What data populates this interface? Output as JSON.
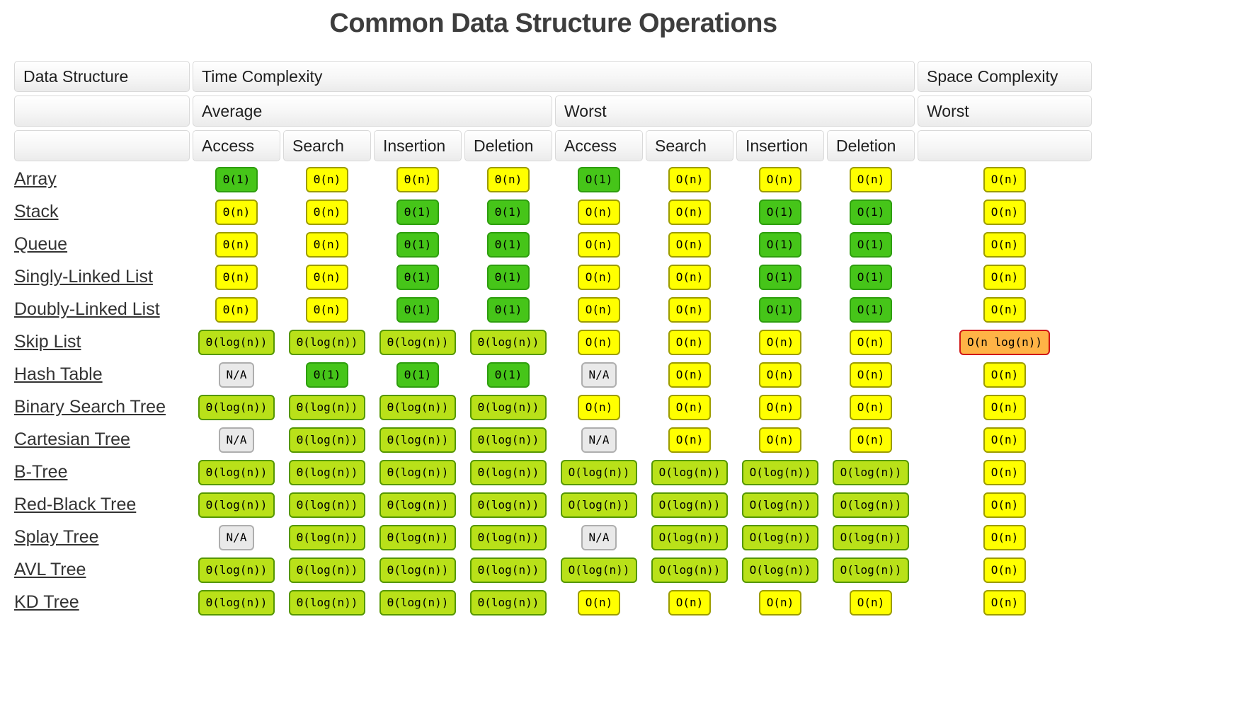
{
  "title": "Common Data Structure Operations",
  "header": {
    "data_structure": "Data Structure",
    "time_complexity": "Time Complexity",
    "space_complexity": "Space Complexity",
    "average": "Average",
    "worst": "Worst",
    "space_worst": "Worst",
    "ops": [
      "Access",
      "Search",
      "Insertion",
      "Deletion",
      "Access",
      "Search",
      "Insertion",
      "Deletion"
    ]
  },
  "colors": {
    "excellent": "#46c519",
    "excellent_border": "#2e9e0e",
    "good": "#b9e119",
    "good_border": "#559700",
    "fair": "#ffff00",
    "fair_border": "#9c9c00",
    "bad": "#ffb346",
    "bad_border": "#d01717",
    "na": "#e9e9e9",
    "na_border": "#aeaeae"
  },
  "rows": [
    {
      "label": "Array",
      "cells": [
        {
          "text": "Θ(1)",
          "cls": "excellent"
        },
        {
          "text": "Θ(n)",
          "cls": "fair"
        },
        {
          "text": "Θ(n)",
          "cls": "fair"
        },
        {
          "text": "Θ(n)",
          "cls": "fair"
        },
        {
          "text": "O(1)",
          "cls": "excellent"
        },
        {
          "text": "O(n)",
          "cls": "fair"
        },
        {
          "text": "O(n)",
          "cls": "fair"
        },
        {
          "text": "O(n)",
          "cls": "fair"
        },
        {
          "text": "O(n)",
          "cls": "fair"
        }
      ]
    },
    {
      "label": "Stack",
      "cells": [
        {
          "text": "Θ(n)",
          "cls": "fair"
        },
        {
          "text": "Θ(n)",
          "cls": "fair"
        },
        {
          "text": "Θ(1)",
          "cls": "excellent"
        },
        {
          "text": "Θ(1)",
          "cls": "excellent"
        },
        {
          "text": "O(n)",
          "cls": "fair"
        },
        {
          "text": "O(n)",
          "cls": "fair"
        },
        {
          "text": "O(1)",
          "cls": "excellent"
        },
        {
          "text": "O(1)",
          "cls": "excellent"
        },
        {
          "text": "O(n)",
          "cls": "fair"
        }
      ]
    },
    {
      "label": "Queue",
      "cells": [
        {
          "text": "Θ(n)",
          "cls": "fair"
        },
        {
          "text": "Θ(n)",
          "cls": "fair"
        },
        {
          "text": "Θ(1)",
          "cls": "excellent"
        },
        {
          "text": "Θ(1)",
          "cls": "excellent"
        },
        {
          "text": "O(n)",
          "cls": "fair"
        },
        {
          "text": "O(n)",
          "cls": "fair"
        },
        {
          "text": "O(1)",
          "cls": "excellent"
        },
        {
          "text": "O(1)",
          "cls": "excellent"
        },
        {
          "text": "O(n)",
          "cls": "fair"
        }
      ]
    },
    {
      "label": "Singly-Linked List",
      "cells": [
        {
          "text": "Θ(n)",
          "cls": "fair"
        },
        {
          "text": "Θ(n)",
          "cls": "fair"
        },
        {
          "text": "Θ(1)",
          "cls": "excellent"
        },
        {
          "text": "Θ(1)",
          "cls": "excellent"
        },
        {
          "text": "O(n)",
          "cls": "fair"
        },
        {
          "text": "O(n)",
          "cls": "fair"
        },
        {
          "text": "O(1)",
          "cls": "excellent"
        },
        {
          "text": "O(1)",
          "cls": "excellent"
        },
        {
          "text": "O(n)",
          "cls": "fair"
        }
      ]
    },
    {
      "label": "Doubly-Linked List",
      "cells": [
        {
          "text": "Θ(n)",
          "cls": "fair"
        },
        {
          "text": "Θ(n)",
          "cls": "fair"
        },
        {
          "text": "Θ(1)",
          "cls": "excellent"
        },
        {
          "text": "Θ(1)",
          "cls": "excellent"
        },
        {
          "text": "O(n)",
          "cls": "fair"
        },
        {
          "text": "O(n)",
          "cls": "fair"
        },
        {
          "text": "O(1)",
          "cls": "excellent"
        },
        {
          "text": "O(1)",
          "cls": "excellent"
        },
        {
          "text": "O(n)",
          "cls": "fair"
        }
      ]
    },
    {
      "label": "Skip List",
      "cells": [
        {
          "text": "Θ(log(n))",
          "cls": "good"
        },
        {
          "text": "Θ(log(n))",
          "cls": "good"
        },
        {
          "text": "Θ(log(n))",
          "cls": "good"
        },
        {
          "text": "Θ(log(n))",
          "cls": "good"
        },
        {
          "text": "O(n)",
          "cls": "fair"
        },
        {
          "text": "O(n)",
          "cls": "fair"
        },
        {
          "text": "O(n)",
          "cls": "fair"
        },
        {
          "text": "O(n)",
          "cls": "fair"
        },
        {
          "text": "O(n log(n))",
          "cls": "bad"
        }
      ]
    },
    {
      "label": "Hash Table",
      "cells": [
        {
          "text": "N/A",
          "cls": "na"
        },
        {
          "text": "Θ(1)",
          "cls": "excellent"
        },
        {
          "text": "Θ(1)",
          "cls": "excellent"
        },
        {
          "text": "Θ(1)",
          "cls": "excellent"
        },
        {
          "text": "N/A",
          "cls": "na"
        },
        {
          "text": "O(n)",
          "cls": "fair"
        },
        {
          "text": "O(n)",
          "cls": "fair"
        },
        {
          "text": "O(n)",
          "cls": "fair"
        },
        {
          "text": "O(n)",
          "cls": "fair"
        }
      ]
    },
    {
      "label": "Binary Search Tree",
      "cells": [
        {
          "text": "Θ(log(n))",
          "cls": "good"
        },
        {
          "text": "Θ(log(n))",
          "cls": "good"
        },
        {
          "text": "Θ(log(n))",
          "cls": "good"
        },
        {
          "text": "Θ(log(n))",
          "cls": "good"
        },
        {
          "text": "O(n)",
          "cls": "fair"
        },
        {
          "text": "O(n)",
          "cls": "fair"
        },
        {
          "text": "O(n)",
          "cls": "fair"
        },
        {
          "text": "O(n)",
          "cls": "fair"
        },
        {
          "text": "O(n)",
          "cls": "fair"
        }
      ]
    },
    {
      "label": "Cartesian Tree",
      "cells": [
        {
          "text": "N/A",
          "cls": "na"
        },
        {
          "text": "Θ(log(n))",
          "cls": "good"
        },
        {
          "text": "Θ(log(n))",
          "cls": "good"
        },
        {
          "text": "Θ(log(n))",
          "cls": "good"
        },
        {
          "text": "N/A",
          "cls": "na"
        },
        {
          "text": "O(n)",
          "cls": "fair"
        },
        {
          "text": "O(n)",
          "cls": "fair"
        },
        {
          "text": "O(n)",
          "cls": "fair"
        },
        {
          "text": "O(n)",
          "cls": "fair"
        }
      ]
    },
    {
      "label": "B-Tree",
      "cells": [
        {
          "text": "Θ(log(n))",
          "cls": "good"
        },
        {
          "text": "Θ(log(n))",
          "cls": "good"
        },
        {
          "text": "Θ(log(n))",
          "cls": "good"
        },
        {
          "text": "Θ(log(n))",
          "cls": "good"
        },
        {
          "text": "O(log(n))",
          "cls": "good"
        },
        {
          "text": "O(log(n))",
          "cls": "good"
        },
        {
          "text": "O(log(n))",
          "cls": "good"
        },
        {
          "text": "O(log(n))",
          "cls": "good"
        },
        {
          "text": "O(n)",
          "cls": "fair"
        }
      ]
    },
    {
      "label": "Red-Black Tree",
      "cells": [
        {
          "text": "Θ(log(n))",
          "cls": "good"
        },
        {
          "text": "Θ(log(n))",
          "cls": "good"
        },
        {
          "text": "Θ(log(n))",
          "cls": "good"
        },
        {
          "text": "Θ(log(n))",
          "cls": "good"
        },
        {
          "text": "O(log(n))",
          "cls": "good"
        },
        {
          "text": "O(log(n))",
          "cls": "good"
        },
        {
          "text": "O(log(n))",
          "cls": "good"
        },
        {
          "text": "O(log(n))",
          "cls": "good"
        },
        {
          "text": "O(n)",
          "cls": "fair"
        }
      ]
    },
    {
      "label": "Splay Tree",
      "cells": [
        {
          "text": "N/A",
          "cls": "na"
        },
        {
          "text": "Θ(log(n))",
          "cls": "good"
        },
        {
          "text": "Θ(log(n))",
          "cls": "good"
        },
        {
          "text": "Θ(log(n))",
          "cls": "good"
        },
        {
          "text": "N/A",
          "cls": "na"
        },
        {
          "text": "O(log(n))",
          "cls": "good"
        },
        {
          "text": "O(log(n))",
          "cls": "good"
        },
        {
          "text": "O(log(n))",
          "cls": "good"
        },
        {
          "text": "O(n)",
          "cls": "fair"
        }
      ]
    },
    {
      "label": "AVL Tree",
      "cells": [
        {
          "text": "Θ(log(n))",
          "cls": "good"
        },
        {
          "text": "Θ(log(n))",
          "cls": "good"
        },
        {
          "text": "Θ(log(n))",
          "cls": "good"
        },
        {
          "text": "Θ(log(n))",
          "cls": "good"
        },
        {
          "text": "O(log(n))",
          "cls": "good"
        },
        {
          "text": "O(log(n))",
          "cls": "good"
        },
        {
          "text": "O(log(n))",
          "cls": "good"
        },
        {
          "text": "O(log(n))",
          "cls": "good"
        },
        {
          "text": "O(n)",
          "cls": "fair"
        }
      ]
    },
    {
      "label": "KD Tree",
      "cells": [
        {
          "text": "Θ(log(n))",
          "cls": "good"
        },
        {
          "text": "Θ(log(n))",
          "cls": "good"
        },
        {
          "text": "Θ(log(n))",
          "cls": "good"
        },
        {
          "text": "Θ(log(n))",
          "cls": "good"
        },
        {
          "text": "O(n)",
          "cls": "fair"
        },
        {
          "text": "O(n)",
          "cls": "fair"
        },
        {
          "text": "O(n)",
          "cls": "fair"
        },
        {
          "text": "O(n)",
          "cls": "fair"
        },
        {
          "text": "O(n)",
          "cls": "fair"
        }
      ]
    }
  ]
}
